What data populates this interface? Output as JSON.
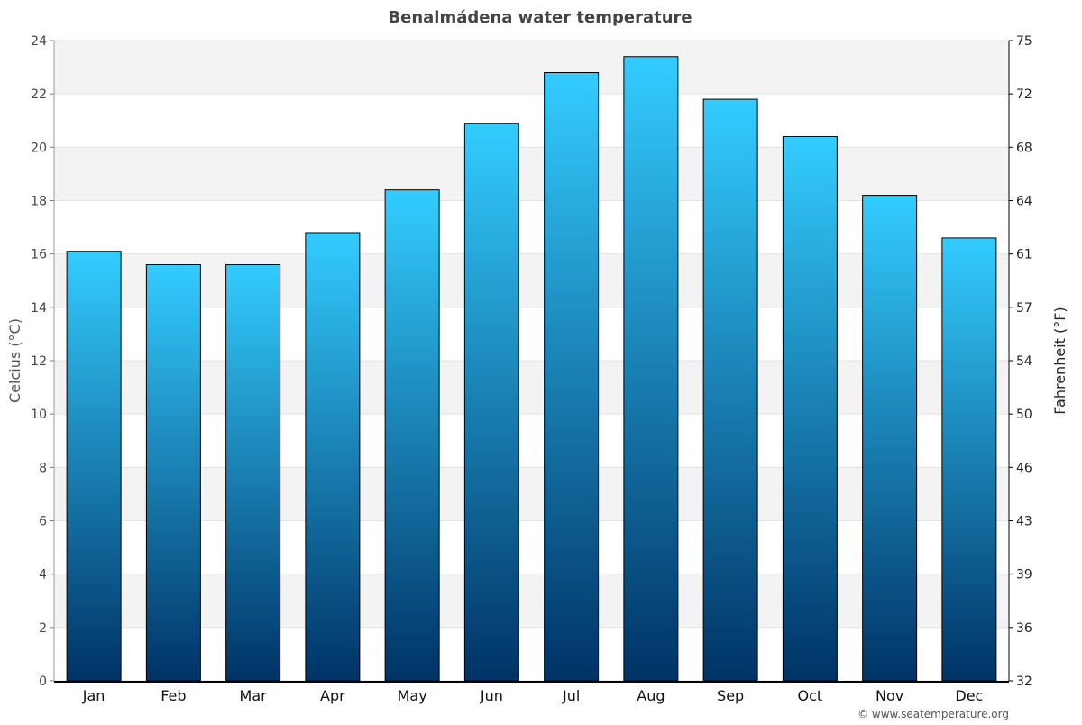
{
  "chart_data": {
    "type": "bar",
    "title": "Benalmádena water temperature",
    "ylabel": "Celcius (°C)",
    "y2label": "Fahrenheit (°F)",
    "xlabel": "",
    "categories": [
      "Jan",
      "Feb",
      "Mar",
      "Apr",
      "May",
      "Jun",
      "Jul",
      "Aug",
      "Sep",
      "Oct",
      "Nov",
      "Dec"
    ],
    "values": [
      16.1,
      15.6,
      15.6,
      16.8,
      18.4,
      20.9,
      22.8,
      23.4,
      21.8,
      20.4,
      18.2,
      16.6
    ],
    "ylim": [
      0,
      24
    ],
    "yticks": [
      0,
      2,
      4,
      6,
      8,
      10,
      12,
      14,
      16,
      18,
      20,
      22,
      24
    ],
    "y2ticks": [
      "32",
      "36",
      "39",
      "43",
      "46",
      "50",
      "54",
      "57",
      "61",
      "64",
      "68",
      "72",
      "75"
    ],
    "grid": true,
    "colors": {
      "bar_top": "#33ccff",
      "bar_bottom": "#003366",
      "band": "#f3f3f3",
      "title": "#444444"
    }
  },
  "credit": "© www.seatemperature.org"
}
